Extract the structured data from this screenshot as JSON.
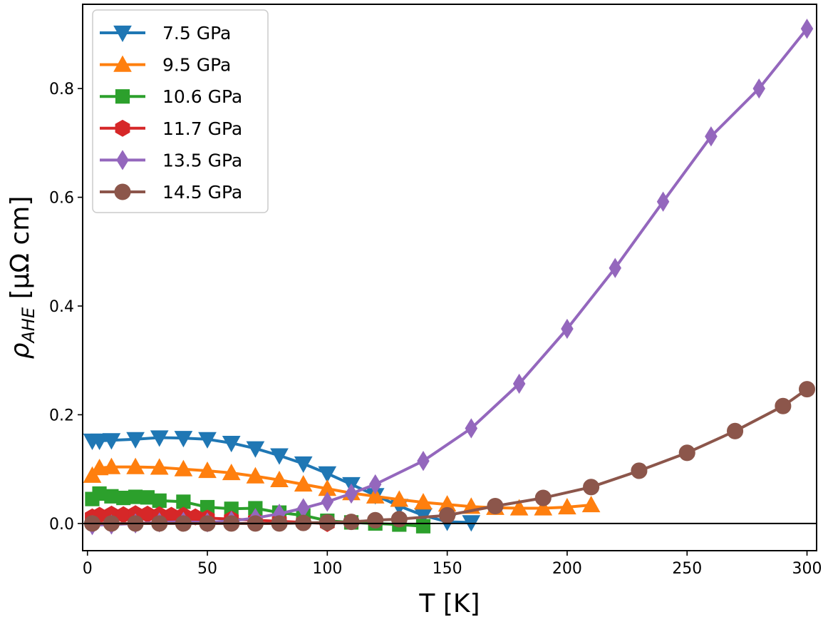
{
  "chart_data": {
    "type": "line",
    "xlabel": "T [K]",
    "ylabel_main": "ρ",
    "ylabel_sub": "AHE",
    "ylabel_units": " [μΩ cm]",
    "xlim": [
      -2,
      304
    ],
    "ylim": [
      -0.05,
      0.955
    ],
    "xticks": [
      0,
      50,
      100,
      150,
      200,
      250,
      300
    ],
    "yticks": [
      0.0,
      0.2,
      0.4,
      0.6,
      0.8
    ],
    "xtick_labels": [
      "0",
      "50",
      "100",
      "150",
      "200",
      "250",
      "300"
    ],
    "ytick_labels": [
      "0.0",
      "0.2",
      "0.4",
      "0.6",
      "0.8"
    ],
    "zero_line": true,
    "grid": false,
    "legend_position": "top-left",
    "series": [
      {
        "name": "7.5 GPa",
        "color": "#1f77b4",
        "marker": "triangle-down",
        "x": [
          2,
          5,
          10,
          20,
          30,
          40,
          50,
          60,
          70,
          80,
          90,
          100,
          110,
          120,
          130,
          140,
          150,
          160
        ],
        "y": [
          0.152,
          0.152,
          0.153,
          0.155,
          0.158,
          0.157,
          0.155,
          0.148,
          0.138,
          0.125,
          0.11,
          0.092,
          0.072,
          0.052,
          0.032,
          0.015,
          0.003,
          0.002
        ]
      },
      {
        "name": "9.5 GPa",
        "color": "#ff7f0e",
        "marker": "triangle-up",
        "x": [
          2,
          5,
          10,
          20,
          30,
          40,
          50,
          60,
          70,
          80,
          90,
          100,
          110,
          120,
          130,
          140,
          150,
          160,
          170,
          180,
          190,
          200,
          210
        ],
        "y": [
          0.088,
          0.102,
          0.104,
          0.104,
          0.103,
          0.1,
          0.097,
          0.093,
          0.087,
          0.08,
          0.072,
          0.064,
          0.056,
          0.05,
          0.044,
          0.039,
          0.035,
          0.031,
          0.029,
          0.028,
          0.028,
          0.03,
          0.034
        ]
      },
      {
        "name": "10.6 GPa",
        "color": "#2ca02c",
        "marker": "square",
        "x": [
          2,
          5,
          10,
          15,
          20,
          25,
          30,
          40,
          50,
          60,
          70,
          80,
          90,
          100,
          110,
          120,
          130,
          140
        ],
        "y": [
          0.045,
          0.055,
          0.05,
          0.047,
          0.049,
          0.048,
          0.042,
          0.04,
          0.03,
          0.027,
          0.028,
          0.02,
          0.015,
          0.005,
          0.002,
          0.0,
          -0.002,
          -0.005
        ]
      },
      {
        "name": "11.7 GPa",
        "color": "#d62728",
        "marker": "hexagon",
        "x": [
          2,
          5,
          10,
          15,
          20,
          25,
          30,
          35,
          40,
          45,
          50,
          60,
          70,
          80,
          90,
          100
        ],
        "y": [
          0.012,
          0.015,
          0.017,
          0.016,
          0.018,
          0.017,
          0.016,
          0.015,
          0.015,
          0.012,
          0.01,
          0.008,
          0.006,
          0.004,
          0.002,
          0.0
        ]
      },
      {
        "name": "13.5 GPa",
        "color": "#9467bd",
        "marker": "diamond",
        "x": [
          2,
          10,
          20,
          30,
          40,
          50,
          60,
          70,
          80,
          90,
          100,
          110,
          120,
          140,
          160,
          180,
          200,
          220,
          240,
          260,
          280,
          300
        ],
        "y": [
          -0.003,
          -0.002,
          0.0,
          0.002,
          0.003,
          0.002,
          0.005,
          0.01,
          0.018,
          0.028,
          0.04,
          0.055,
          0.072,
          0.115,
          0.175,
          0.257,
          0.358,
          0.47,
          0.592,
          0.712,
          0.8,
          0.91
        ]
      },
      {
        "name": "14.5 GPa",
        "color": "#8c564b",
        "marker": "circle",
        "x": [
          2,
          10,
          20,
          30,
          40,
          50,
          60,
          70,
          80,
          90,
          100,
          110,
          120,
          130,
          150,
          170,
          190,
          210,
          230,
          250,
          270,
          290,
          300
        ],
        "y": [
          0.0,
          0.0,
          0.0,
          0.0,
          0.0,
          0.0,
          0.0,
          0.0,
          0.0,
          0.001,
          0.002,
          0.003,
          0.006,
          0.008,
          0.015,
          0.032,
          0.047,
          0.067,
          0.097,
          0.13,
          0.17,
          0.216,
          0.247
        ]
      }
    ]
  }
}
